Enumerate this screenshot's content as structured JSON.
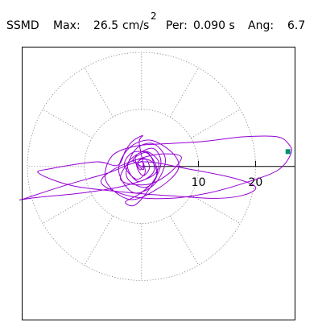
{
  "header": {
    "title": "SSMD",
    "max_label": "Max:",
    "max_value": "26.5",
    "max_unit": "cm/s",
    "max_unit_exp": "2",
    "per_label": "Per:",
    "per_value": "0.090 s",
    "ang_label": "Ang:",
    "ang_value": "6.7"
  },
  "chart_data": {
    "type": "scatter",
    "title": "SSMD",
    "max_acceleration": 26.5,
    "max_unit": "cm/s2",
    "period_s": 0.09,
    "angle_deg": 6.7,
    "xlim": [
      -21,
      27
    ],
    "ylim": [
      -27,
      21
    ],
    "polar_grid": {
      "rings": [
        10,
        20
      ],
      "spoke_angles_deg": [
        0,
        30,
        60,
        90,
        120,
        150,
        180,
        210,
        240,
        270,
        300,
        330
      ]
    },
    "tick_labels": [
      "10",
      "20"
    ],
    "tick_values": [
      10,
      20
    ],
    "colors": {
      "trace": "#9400d3",
      "marker": "#009070",
      "axis": "#000000",
      "grid": "#808080"
    },
    "series": [
      {
        "points": [
          [
            0,
            0
          ],
          [
            -1.5,
            1.2
          ],
          [
            1.1,
            2.4
          ],
          [
            2.2,
            -0.8
          ],
          [
            -0.7,
            -2.6
          ],
          [
            -2.4,
            0.6
          ],
          [
            1.8,
            3.2
          ],
          [
            3.4,
            0.4
          ],
          [
            1.0,
            -3.6
          ],
          [
            -2.6,
            -1.8
          ],
          [
            -1.2,
            2.8
          ],
          [
            2.0,
            4.0
          ],
          [
            4.2,
            1.2
          ],
          [
            2.4,
            -3.0
          ],
          [
            -1.4,
            -4.6
          ],
          [
            -4.0,
            -0.8
          ],
          [
            -2.2,
            3.2
          ],
          [
            1.6,
            4.6
          ],
          [
            5.6,
            2.2
          ],
          [
            6.4,
            -0.6
          ],
          [
            3.0,
            -3.8
          ],
          [
            -2.0,
            -5.8
          ],
          [
            -6.2,
            -2.6
          ],
          [
            -5.2,
            1.8
          ],
          [
            -0.8,
            3.6
          ],
          [
            4.8,
            4.0
          ],
          [
            11.0,
            4.4
          ],
          [
            18.0,
            5.2
          ],
          [
            23.8,
            5.2
          ],
          [
            25.9,
            3.8
          ],
          [
            26.2,
            2.2
          ],
          [
            24.0,
            -0.6
          ],
          [
            19.0,
            -2.6
          ],
          [
            12.0,
            -4.6
          ],
          [
            5.0,
            -5.6
          ],
          [
            -2.0,
            -5.2
          ],
          [
            -7.0,
            -3.0
          ],
          [
            -5.0,
            -0.6
          ],
          [
            -0.2,
            1.4
          ],
          [
            3.8,
            2.2
          ],
          [
            7.0,
            1.6
          ],
          [
            4.6,
            -1.4
          ],
          [
            0.8,
            -3.2
          ],
          [
            -3.6,
            -2.4
          ],
          [
            -2.0,
            0.8
          ],
          [
            1.6,
            1.0
          ],
          [
            2.6,
            -1.8
          ],
          [
            0.0,
            -4.6
          ],
          [
            -2.8,
            -6.2
          ],
          [
            -1.2,
            -6.8
          ],
          [
            1.2,
            -4.2
          ],
          [
            2.8,
            -1.0
          ],
          [
            1.2,
            2.2
          ],
          [
            -1.6,
            2.4
          ],
          [
            -3.0,
            0.2
          ],
          [
            -1.0,
            -2.2
          ],
          [
            0.6,
            -1.2
          ],
          [
            0.2,
            0.8
          ],
          [
            -0.6,
            0.4
          ],
          [
            0.4,
            -0.4
          ],
          [
            -0.4,
            4.2
          ],
          [
            0.2,
            5.4
          ],
          [
            -1.6,
            4.4
          ],
          [
            -2.8,
            2.8
          ],
          [
            -4.2,
            0.2
          ],
          [
            -8.0,
            0.8
          ],
          [
            -16.0,
            -0.4
          ],
          [
            -18.0,
            -1.2
          ],
          [
            -12.0,
            -3.4
          ],
          [
            -2.0,
            -4.6
          ],
          [
            6.0,
            -5.2
          ],
          [
            13.0,
            -5.6
          ],
          [
            18.0,
            -5.0
          ],
          [
            20.0,
            -3.6
          ],
          [
            16.0,
            -2.0
          ],
          [
            8.0,
            -0.4
          ],
          [
            0.0,
            0.8
          ],
          [
            -6.0,
            -1.2
          ],
          [
            -13.0,
            -3.2
          ],
          [
            -20.4,
            -5.6
          ],
          [
            -21.0,
            -5.8
          ],
          [
            -18.0,
            -5.4
          ],
          [
            -10.0,
            -4.6
          ],
          [
            -3.0,
            -3.4
          ],
          [
            2.0,
            -1.6
          ],
          [
            3.0,
            0.8
          ],
          [
            1.0,
            2.6
          ],
          [
            -1.0,
            1.8
          ],
          [
            -0.6,
            -0.6
          ],
          [
            0.4,
            -1.6
          ],
          [
            1.4,
            -0.2
          ],
          [
            0.6,
            1.4
          ],
          [
            -0.8,
            0.6
          ],
          [
            -0.2,
            -0.6
          ],
          [
            0.3,
            0.2
          ]
        ]
      }
    ],
    "marker": [
      25.7,
      2.6
    ]
  }
}
